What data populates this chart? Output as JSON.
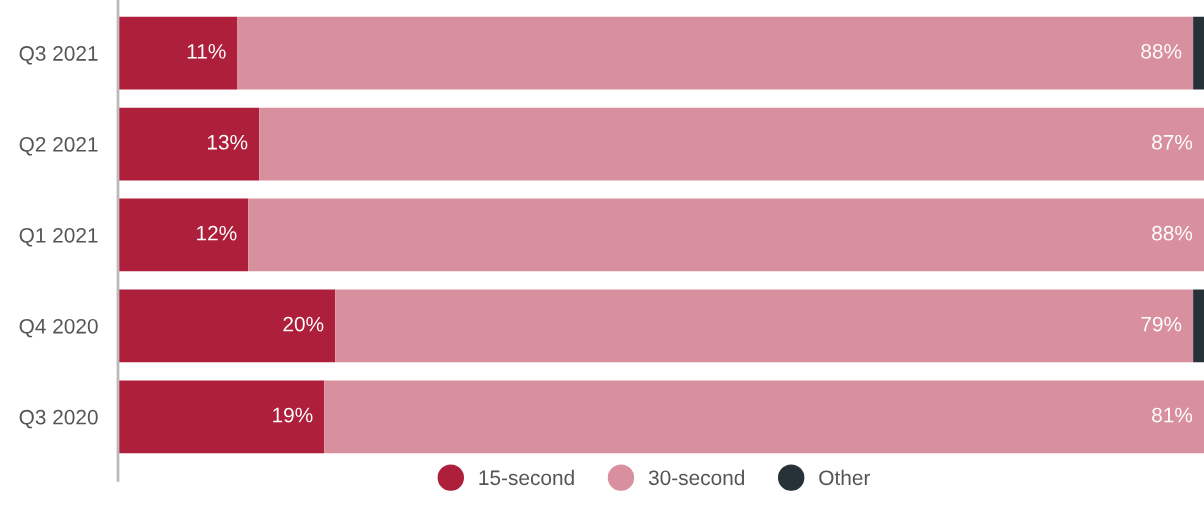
{
  "chart_data": {
    "type": "bar",
    "orientation": "horizontal",
    "stacked": true,
    "categories": [
      "Q3 2021",
      "Q2 2021",
      "Q1 2021",
      "Q4 2020",
      "Q3 2020"
    ],
    "series": [
      {
        "name": "15-second",
        "color": "#ae1f3b",
        "values": [
          11,
          13,
          12,
          20,
          19
        ],
        "value_labels": [
          "11%",
          "13%",
          "12%",
          "20%",
          "19%"
        ]
      },
      {
        "name": "30-second",
        "color": "#d9909e",
        "values": [
          88,
          87,
          88,
          79,
          81
        ],
        "value_labels": [
          "88%",
          "87%",
          "88%",
          "79%",
          "81%"
        ]
      },
      {
        "name": "Other",
        "color": "#263238",
        "values": [
          1,
          0,
          0,
          1,
          0
        ],
        "value_labels": [
          null,
          null,
          null,
          null,
          null
        ]
      }
    ],
    "xlim": [
      0,
      100
    ],
    "tick_labels": "y",
    "grid": false,
    "legend": "bottom"
  }
}
